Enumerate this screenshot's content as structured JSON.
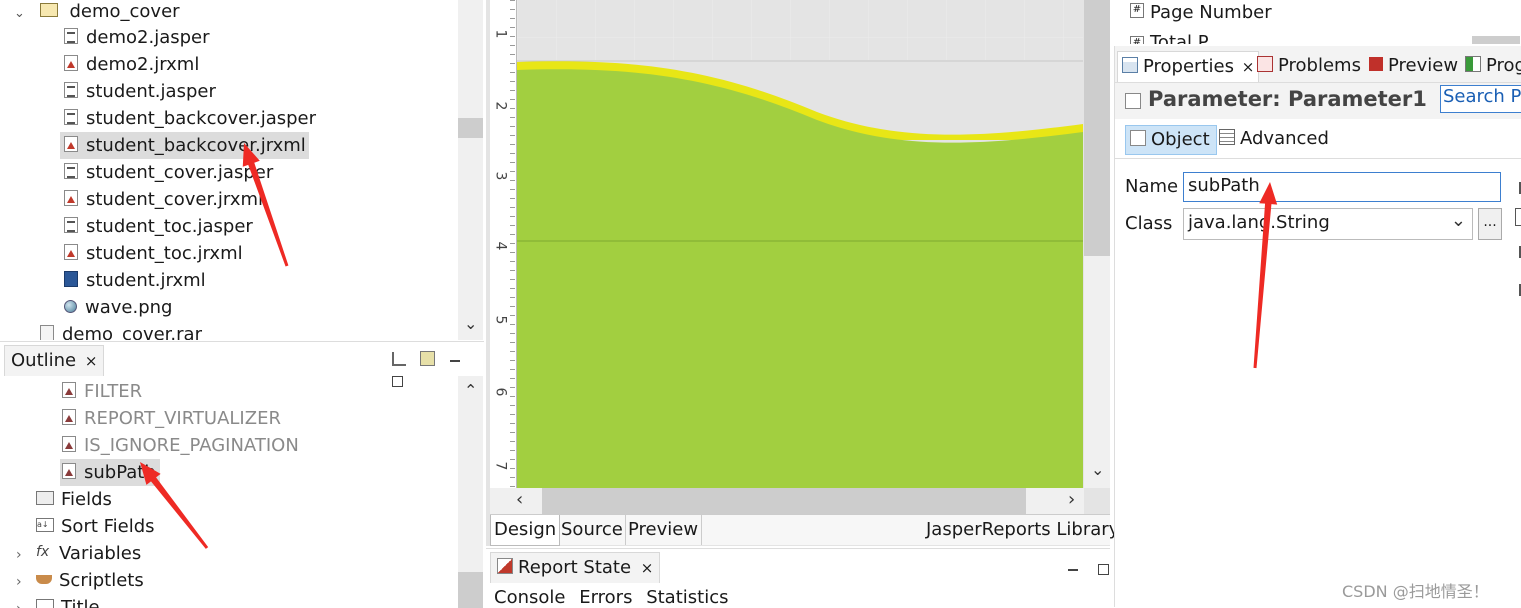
{
  "project_tree": {
    "folder": "demo_cover",
    "files": [
      {
        "name": "demo2.jasper",
        "icon": "jasper-file-icon"
      },
      {
        "name": "demo2.jrxml",
        "icon": "jrxml-file-icon"
      },
      {
        "name": "student.jasper",
        "icon": "jasper-file-icon"
      },
      {
        "name": "student_backcover.jasper",
        "icon": "jasper-file-icon"
      },
      {
        "name": "student_backcover.jrxml",
        "icon": "jrxml-file-icon",
        "selected": true
      },
      {
        "name": "student_cover.jasper",
        "icon": "jasper-file-icon"
      },
      {
        "name": "student_cover.jrxml",
        "icon": "jrxml-file-icon"
      },
      {
        "name": "student_toc.jasper",
        "icon": "jasper-file-icon"
      },
      {
        "name": "student_toc.jrxml",
        "icon": "jrxml-file-icon"
      },
      {
        "name": "student.jrxml",
        "icon": "report-file-icon"
      },
      {
        "name": "wave.png",
        "icon": "image-file-icon"
      }
    ],
    "archive": "demo_cover.rar"
  },
  "outline": {
    "title": "Outline",
    "parameters": [
      "FILTER",
      "REPORT_VIRTUALIZER",
      "IS_IGNORE_PAGINATION",
      "subPath"
    ],
    "nodes": [
      "Fields",
      "Sort Fields",
      "Variables",
      "Scriptlets",
      "Title"
    ],
    "close_symbol": "×"
  },
  "ruler": {
    "labels": [
      "1",
      "2",
      "3",
      "4",
      "5",
      "6",
      "7"
    ]
  },
  "canvas": {
    "band_color": "#a2cf40",
    "wave_edge_color": "#e8e616"
  },
  "editor_tabs": {
    "design": "Design",
    "source": "Source",
    "preview": "Preview",
    "library": "JasperReports Library"
  },
  "report_state": {
    "title": "Report State",
    "close_symbol": "×",
    "tabs": [
      "Console",
      "Errors",
      "Statistics"
    ]
  },
  "palette": {
    "items": [
      "Page Number",
      "Total P..."
    ]
  },
  "properties": {
    "tabs": [
      {
        "label": "Properties",
        "active": true
      },
      {
        "label": "Problems"
      },
      {
        "label": "Preview"
      },
      {
        "label": "Prog"
      }
    ],
    "close_symbol": "×",
    "header": "Parameter: Parameter1",
    "search_text": "Search Pr",
    "subtabs": {
      "object": "Object",
      "advanced": "Advanced"
    },
    "name_label": "Name",
    "name_value": "subPath",
    "class_label": "Class",
    "class_value": "java.lang.String",
    "browse_label": "..."
  },
  "watermark": "CSDN @扫地情圣！",
  "colors": {
    "arrow": "#ee2a24",
    "selection": "#dcdcdc",
    "field_border": "#3d7fcf"
  }
}
